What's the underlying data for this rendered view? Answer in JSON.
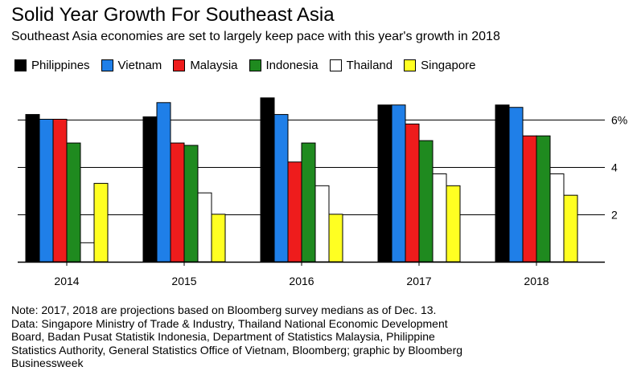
{
  "header": {
    "title": "Solid Year Growth For Southeast Asia",
    "subtitle": "Southeast Asia economies are set to largely keep pace with this year's growth in 2018"
  },
  "legend": [
    {
      "label": "Philippines",
      "color": "#000000"
    },
    {
      "label": "Vietnam",
      "color": "#1f7fe8"
    },
    {
      "label": "Malaysia",
      "color": "#ee1c1c"
    },
    {
      "label": "Indonesia",
      "color": "#1f8a1f"
    },
    {
      "label": "Thailand",
      "color": "#ffffff"
    },
    {
      "label": "Singapore",
      "color": "#ffff22"
    }
  ],
  "chart_data": {
    "type": "bar",
    "title": "Solid Year Growth For Southeast Asia",
    "subtitle": "Southeast Asia economies are set to largely keep pace with this year's growth in 2018",
    "categories": [
      "2014",
      "2015",
      "2016",
      "2017",
      "2018"
    ],
    "series": [
      {
        "name": "Philippines",
        "color": "#000000",
        "values": [
          6.2,
          6.1,
          6.9,
          6.6,
          6.6
        ]
      },
      {
        "name": "Vietnam",
        "color": "#1f7fe8",
        "values": [
          6.0,
          6.7,
          6.2,
          6.6,
          6.5
        ]
      },
      {
        "name": "Malaysia",
        "color": "#ee1c1c",
        "values": [
          6.0,
          5.0,
          4.2,
          5.8,
          5.3
        ]
      },
      {
        "name": "Indonesia",
        "color": "#1f8a1f",
        "values": [
          5.0,
          4.9,
          5.0,
          5.1,
          5.3
        ]
      },
      {
        "name": "Thailand",
        "color": "#ffffff",
        "values": [
          0.8,
          2.9,
          3.2,
          3.7,
          3.7
        ]
      },
      {
        "name": "Singapore",
        "color": "#ffff22",
        "values": [
          3.3,
          2.0,
          2.0,
          3.2,
          2.8
        ]
      }
    ],
    "yticks": [
      {
        "value": 2,
        "label": "2"
      },
      {
        "value": 4,
        "label": "4"
      },
      {
        "value": 6,
        "label": "6%"
      }
    ],
    "ylim": [
      0,
      7.2
    ],
    "grid": true,
    "legend_position": "top-left",
    "xlabel": "",
    "ylabel": ""
  },
  "notes": [
    "Note: 2017, 2018 are projections based on Bloomberg survey medians as of Dec. 13.",
    "Data: Singapore Ministry of Trade & Industry, Thailand National Economic Development",
    "Board, Badan Pusat Statistik Indonesia, Department of Statistics Malaysia, Philippine",
    "Statistics Authority, General Statistics Office of Vietnam, Bloomberg; graphic by Bloomberg",
    "Businessweek"
  ]
}
